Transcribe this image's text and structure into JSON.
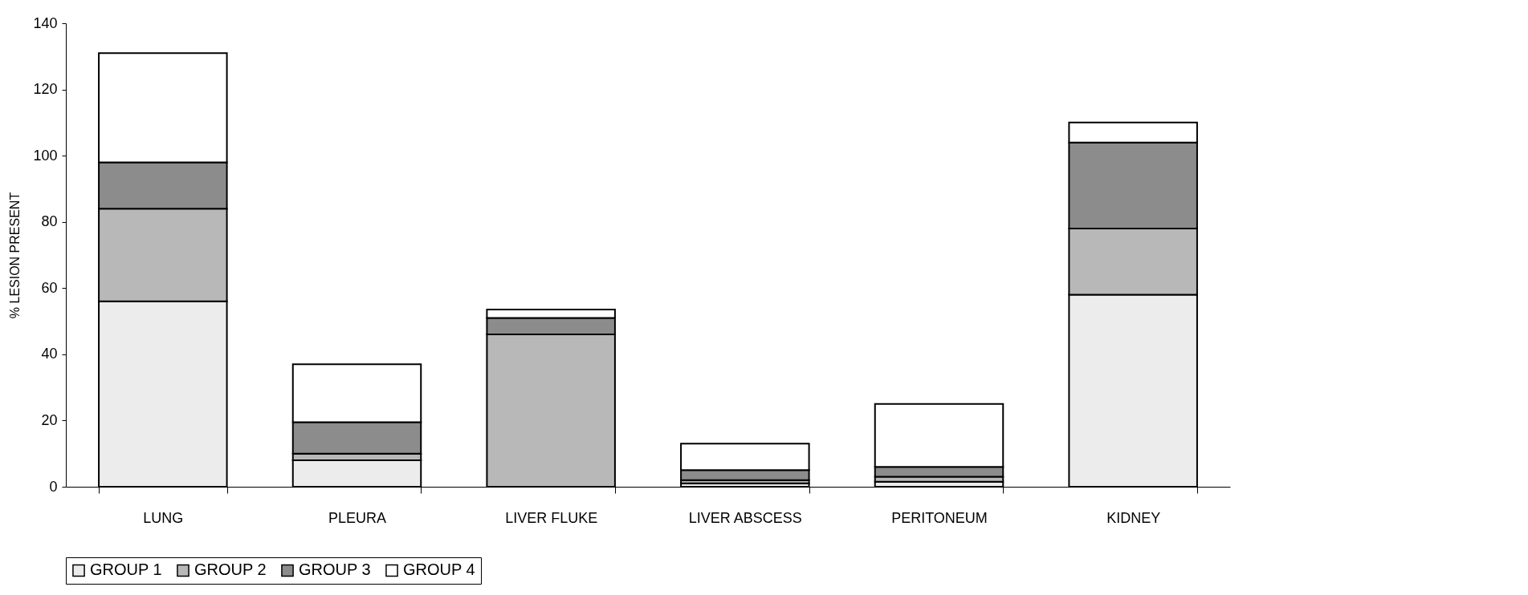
{
  "chart_data": {
    "type": "bar",
    "stacked": true,
    "ylabel": "% LESION PRESENT",
    "categories": [
      "LUNG",
      "PLEURA",
      "LIVER FLUKE",
      "LIVER ABSCESS",
      "PERITONEUM",
      "KIDNEY"
    ],
    "series": [
      {
        "name": "GROUP 1",
        "color": "#ececec",
        "values": [
          56,
          8,
          0,
          1,
          1.5,
          58
        ]
      },
      {
        "name": "GROUP 2",
        "color": "#b8b8b8",
        "values": [
          28,
          2,
          46,
          1,
          1.5,
          20
        ]
      },
      {
        "name": "GROUP 3",
        "color": "#8c8c8c",
        "values": [
          14,
          9.5,
          5,
          3,
          3,
          26
        ]
      },
      {
        "name": "GROUP 4",
        "color": "#ffffff",
        "values": [
          33,
          17.5,
          2.5,
          8,
          19,
          6
        ]
      }
    ],
    "ylim": [
      0,
      140
    ],
    "yticks": [
      0,
      20,
      40,
      60,
      80,
      100,
      120,
      140
    ],
    "grid": false,
    "legend": "bottom"
  }
}
